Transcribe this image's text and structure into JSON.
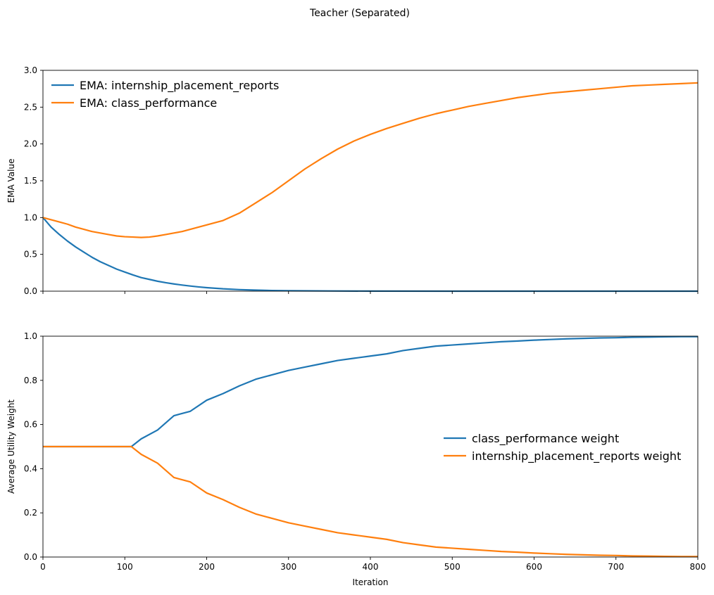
{
  "title": "Teacher (Separated)",
  "colors": {
    "blue": "#1f77b4",
    "orange": "#ff7f0e"
  },
  "chart_data": [
    {
      "type": "line",
      "panel": "top",
      "title": "",
      "xlabel": "",
      "ylabel": "EMA Value",
      "xlim": [
        0,
        800
      ],
      "ylim": [
        0,
        3.0
      ],
      "xticks": [
        0,
        100,
        200,
        300,
        400,
        500,
        600,
        700,
        800
      ],
      "yticks": [
        0.0,
        0.5,
        1.0,
        1.5,
        2.0,
        2.5,
        3.0
      ],
      "ytick_labels": [
        "0.0",
        "0.5",
        "1.0",
        "1.5",
        "2.0",
        "2.5",
        "3.0"
      ],
      "show_xtick_labels": false,
      "legend_placement": "upper-left",
      "series": [
        {
          "name": "EMA: internship_placement_reports",
          "color": "#1f77b4",
          "x": [
            0,
            10,
            20,
            30,
            40,
            50,
            60,
            70,
            80,
            90,
            100,
            110,
            120,
            130,
            140,
            150,
            160,
            170,
            180,
            190,
            200,
            220,
            240,
            260,
            280,
            300,
            350,
            400,
            500,
            600,
            700,
            800
          ],
          "y": [
            1.0,
            0.87,
            0.77,
            0.68,
            0.6,
            0.53,
            0.46,
            0.4,
            0.35,
            0.3,
            0.26,
            0.22,
            0.185,
            0.16,
            0.135,
            0.115,
            0.098,
            0.083,
            0.07,
            0.058,
            0.048,
            0.032,
            0.021,
            0.014,
            0.009,
            0.006,
            0.003,
            0.001,
            0.0,
            0.0,
            0.0,
            0.0
          ]
        },
        {
          "name": "EMA: class_performance",
          "color": "#ff7f0e",
          "x": [
            0,
            10,
            20,
            30,
            40,
            50,
            60,
            70,
            80,
            90,
            100,
            110,
            120,
            130,
            140,
            150,
            160,
            170,
            180,
            190,
            200,
            220,
            240,
            260,
            280,
            300,
            320,
            340,
            360,
            380,
            400,
            420,
            440,
            460,
            480,
            500,
            520,
            540,
            560,
            580,
            600,
            620,
            640,
            660,
            680,
            700,
            720,
            740,
            760,
            780,
            800
          ],
          "y": [
            1.0,
            0.97,
            0.94,
            0.91,
            0.87,
            0.84,
            0.81,
            0.79,
            0.77,
            0.75,
            0.74,
            0.735,
            0.73,
            0.735,
            0.75,
            0.77,
            0.79,
            0.81,
            0.84,
            0.87,
            0.9,
            0.96,
            1.06,
            1.2,
            1.34,
            1.5,
            1.66,
            1.8,
            1.93,
            2.04,
            2.13,
            2.21,
            2.28,
            2.35,
            2.41,
            2.46,
            2.51,
            2.55,
            2.59,
            2.63,
            2.66,
            2.69,
            2.71,
            2.73,
            2.75,
            2.77,
            2.79,
            2.8,
            2.81,
            2.82,
            2.83
          ]
        }
      ]
    },
    {
      "type": "line",
      "panel": "bottom",
      "title": "",
      "xlabel": "Iteration",
      "ylabel": "Average Utility Weight",
      "xlim": [
        0,
        800
      ],
      "ylim": [
        0,
        1.0
      ],
      "xticks": [
        0,
        100,
        200,
        300,
        400,
        500,
        600,
        700,
        800
      ],
      "yticks": [
        0.0,
        0.2,
        0.4,
        0.6,
        0.8,
        1.0
      ],
      "ytick_labels": [
        "0.0",
        "0.2",
        "0.4",
        "0.6",
        "0.8",
        "1.0"
      ],
      "show_xtick_labels": true,
      "legend_placement": "center-right",
      "series": [
        {
          "name": "class_performance weight",
          "color": "#1f77b4",
          "x": [
            0,
            50,
            100,
            108,
            120,
            140,
            160,
            180,
            200,
            220,
            240,
            260,
            280,
            300,
            320,
            340,
            360,
            380,
            400,
            420,
            440,
            460,
            480,
            500,
            520,
            540,
            560,
            580,
            600,
            620,
            640,
            660,
            680,
            700,
            720,
            740,
            760,
            780,
            800
          ],
          "y": [
            0.5,
            0.5,
            0.5,
            0.5,
            0.535,
            0.575,
            0.64,
            0.66,
            0.71,
            0.74,
            0.775,
            0.805,
            0.825,
            0.845,
            0.86,
            0.875,
            0.89,
            0.9,
            0.91,
            0.92,
            0.935,
            0.945,
            0.955,
            0.96,
            0.965,
            0.97,
            0.975,
            0.978,
            0.982,
            0.985,
            0.988,
            0.99,
            0.992,
            0.993,
            0.995,
            0.996,
            0.997,
            0.998,
            0.998
          ]
        },
        {
          "name": "internship_placement_reports weight",
          "color": "#ff7f0e",
          "x": [
            0,
            50,
            100,
            108,
            120,
            140,
            160,
            180,
            200,
            220,
            240,
            260,
            280,
            300,
            320,
            340,
            360,
            380,
            400,
            420,
            440,
            460,
            480,
            500,
            520,
            540,
            560,
            580,
            600,
            620,
            640,
            660,
            680,
            700,
            720,
            740,
            760,
            780,
            800
          ],
          "y": [
            0.5,
            0.5,
            0.5,
            0.5,
            0.465,
            0.425,
            0.36,
            0.34,
            0.29,
            0.26,
            0.225,
            0.195,
            0.175,
            0.155,
            0.14,
            0.125,
            0.11,
            0.1,
            0.09,
            0.08,
            0.065,
            0.055,
            0.045,
            0.04,
            0.035,
            0.03,
            0.025,
            0.022,
            0.018,
            0.015,
            0.012,
            0.01,
            0.008,
            0.007,
            0.005,
            0.004,
            0.003,
            0.002,
            0.002
          ]
        }
      ]
    }
  ]
}
